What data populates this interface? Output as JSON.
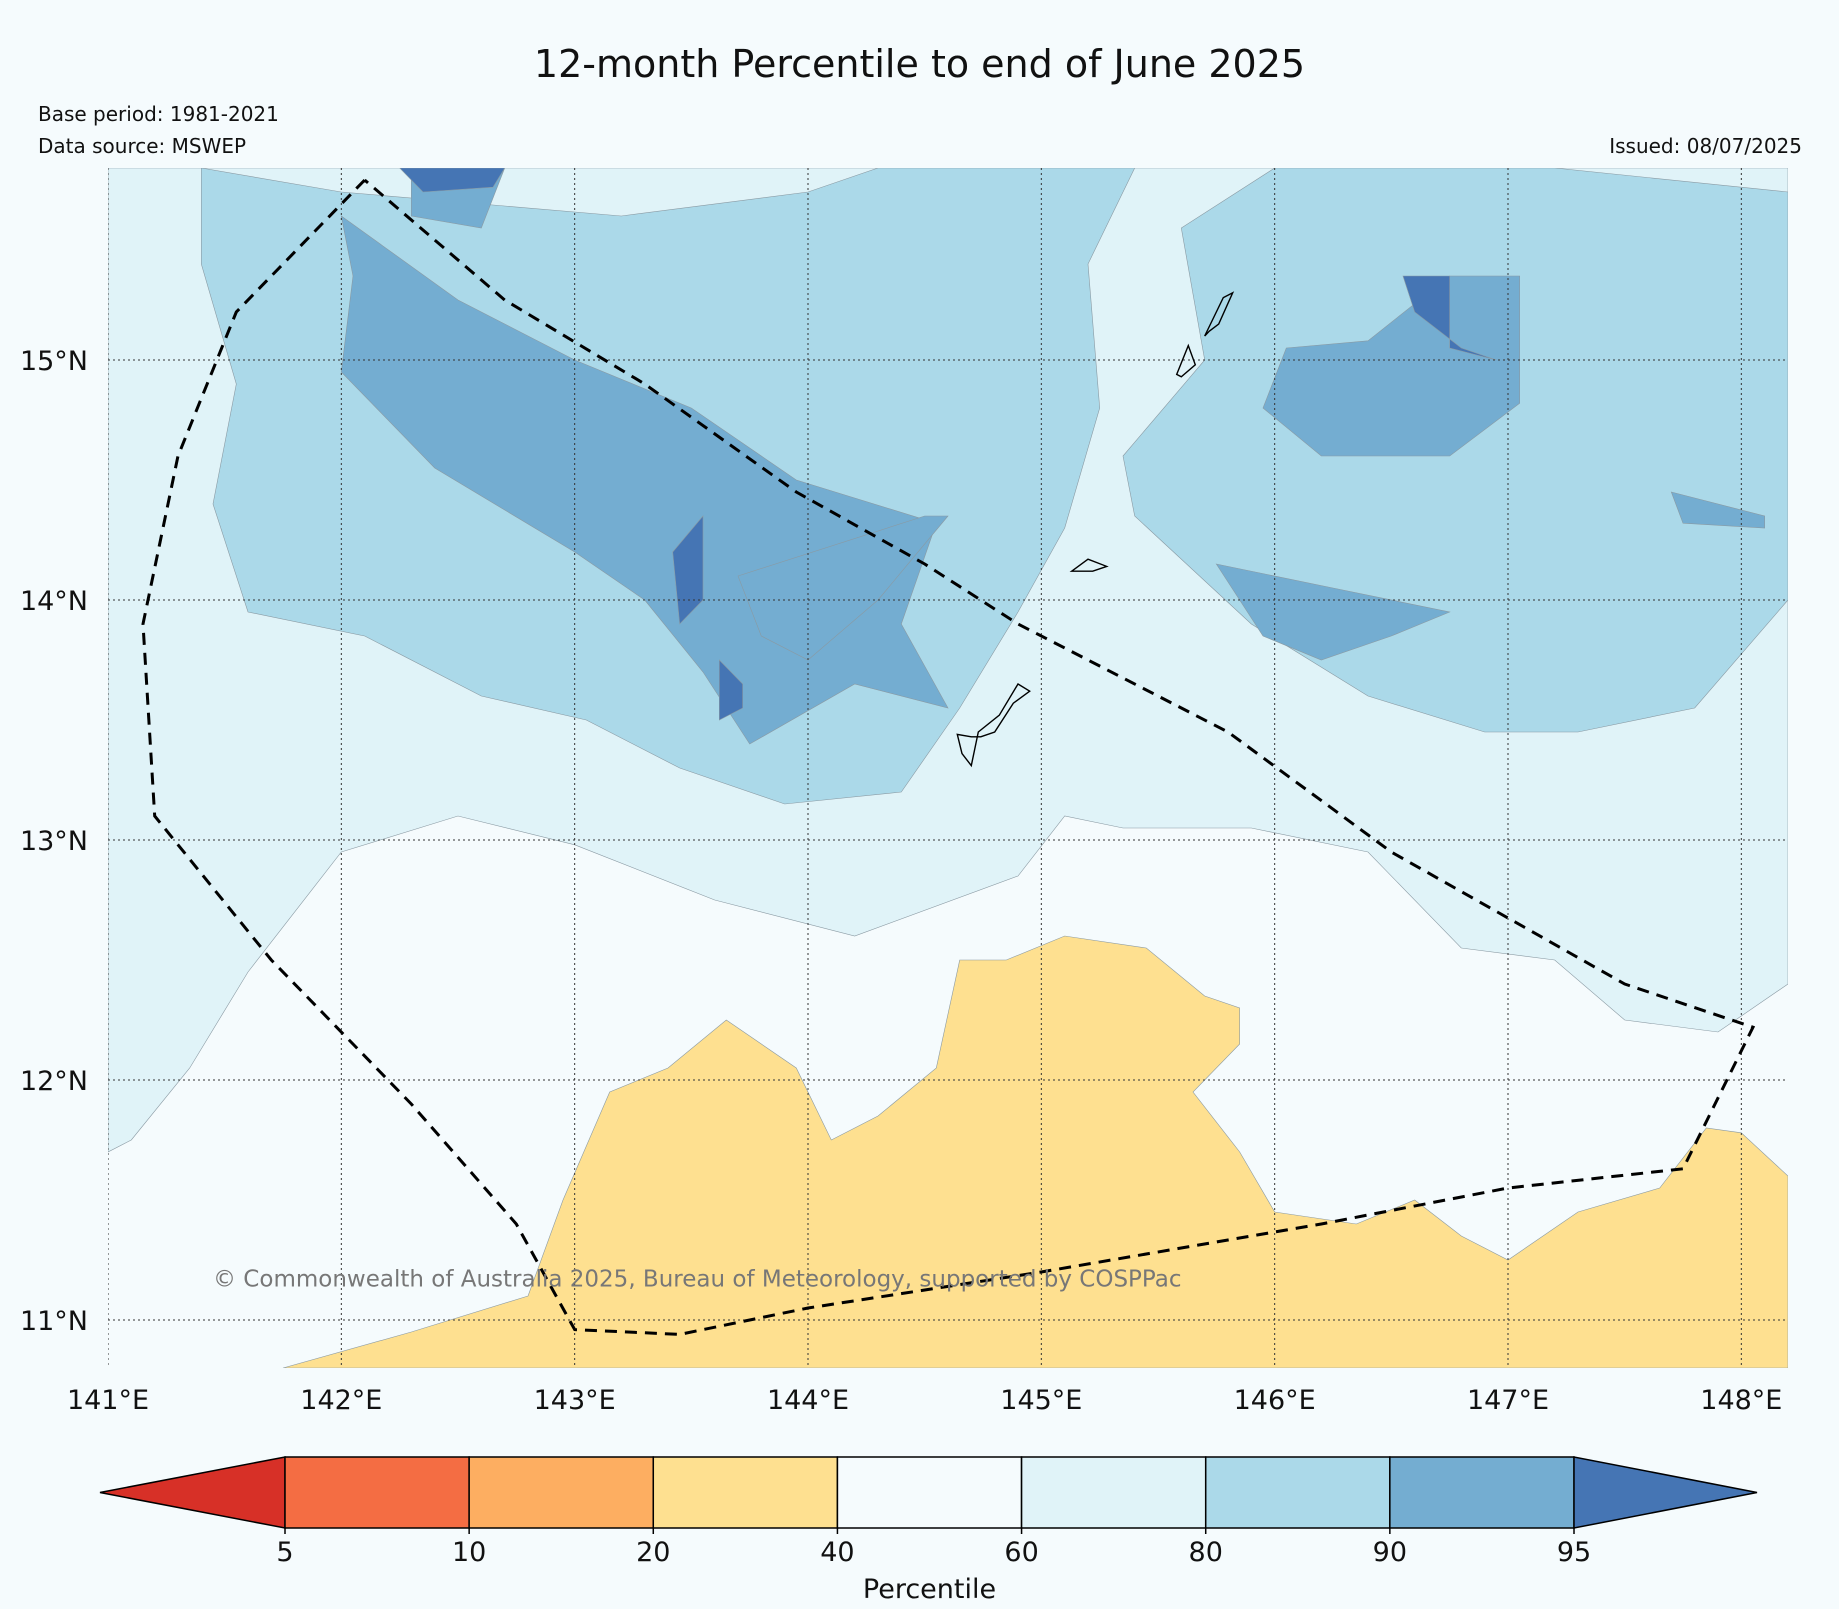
{
  "title": "12-month Percentile to end of June 2025",
  "base_period": "Base period: 1981-2021",
  "data_source": "Data source: MSWEP",
  "issued": "Issued: 08/07/2025",
  "copyright": "© Commonwealth of Australia 2025, Bureau of Meteorology, supported by COSPPac",
  "map": {
    "lon_range": [
      141.0,
      148.2
    ],
    "lat_range": [
      10.8,
      15.8
    ],
    "lon_ticks": [
      {
        "value": 141,
        "label": "141°E"
      },
      {
        "value": 142,
        "label": "142°E"
      },
      {
        "value": 143,
        "label": "143°E"
      },
      {
        "value": 144,
        "label": "144°E"
      },
      {
        "value": 145,
        "label": "145°E"
      },
      {
        "value": 146,
        "label": "146°E"
      },
      {
        "value": 147,
        "label": "147°E"
      },
      {
        "value": 148,
        "label": "148°E"
      }
    ],
    "lat_ticks": [
      {
        "value": 15,
        "label": "15°N"
      },
      {
        "value": 14,
        "label": "14°N"
      },
      {
        "value": 13,
        "label": "13°N"
      },
      {
        "value": 12,
        "label": "12°N"
      },
      {
        "value": 11,
        "label": "11°N"
      }
    ],
    "gridlines": "dotted",
    "eez_boundary": [
      [
        142.1,
        15.75
      ],
      [
        141.55,
        15.2
      ],
      [
        141.3,
        14.6
      ],
      [
        141.15,
        13.9
      ],
      [
        141.2,
        13.1
      ],
      [
        141.7,
        12.5
      ],
      [
        142.3,
        11.9
      ],
      [
        142.75,
        11.4
      ],
      [
        143.0,
        10.96
      ],
      [
        143.45,
        10.94
      ],
      [
        144.0,
        11.05
      ],
      [
        145.0,
        11.2
      ],
      [
        146.2,
        11.4
      ],
      [
        147.0,
        11.55
      ],
      [
        147.75,
        11.63
      ],
      [
        148.05,
        12.22
      ],
      [
        147.5,
        12.4
      ],
      [
        146.5,
        12.95
      ],
      [
        145.8,
        13.45
      ],
      [
        145.2,
        13.75
      ],
      [
        144.9,
        13.9
      ],
      [
        144.5,
        14.15
      ],
      [
        143.95,
        14.45
      ],
      [
        143.3,
        14.9
      ],
      [
        142.7,
        15.25
      ],
      [
        142.1,
        15.75
      ]
    ],
    "islands": [
      {
        "name": "Guam",
        "coords": [
          [
            144.74,
            13.43
          ],
          [
            144.8,
            13.45
          ],
          [
            144.88,
            13.57
          ],
          [
            144.95,
            13.62
          ],
          [
            144.9,
            13.65
          ],
          [
            144.82,
            13.52
          ],
          [
            144.73,
            13.45
          ],
          [
            144.7,
            13.31
          ],
          [
            144.66,
            13.36
          ],
          [
            144.64,
            13.44
          ],
          [
            144.7,
            13.43
          ]
        ]
      },
      {
        "name": "Rota",
        "coords": [
          [
            145.13,
            14.12
          ],
          [
            145.2,
            14.17
          ],
          [
            145.28,
            14.14
          ],
          [
            145.22,
            14.12
          ],
          [
            145.13,
            14.12
          ]
        ]
      },
      {
        "name": "Tinian",
        "coords": [
          [
            145.58,
            14.94
          ],
          [
            145.63,
            15.06
          ],
          [
            145.66,
            14.98
          ],
          [
            145.6,
            14.93
          ]
        ]
      },
      {
        "name": "Saipan",
        "coords": [
          [
            145.7,
            15.1
          ],
          [
            145.78,
            15.26
          ],
          [
            145.82,
            15.28
          ],
          [
            145.76,
            15.15
          ],
          [
            145.72,
            15.12
          ]
        ]
      }
    ],
    "precip_percentile_regions": [
      {
        "class": "60-80",
        "coords": [
          [
            141.0,
            15.8
          ],
          [
            148.2,
            15.8
          ],
          [
            148.2,
            12.4
          ],
          [
            147.9,
            12.2
          ],
          [
            147.5,
            12.25
          ],
          [
            147.2,
            12.5
          ],
          [
            146.8,
            12.55
          ],
          [
            146.4,
            12.95
          ],
          [
            145.9,
            13.05
          ],
          [
            145.35,
            13.05
          ],
          [
            145.1,
            13.1
          ],
          [
            144.9,
            12.85
          ],
          [
            144.2,
            12.6
          ],
          [
            143.6,
            12.75
          ],
          [
            143.0,
            12.98
          ],
          [
            142.5,
            13.1
          ],
          [
            142.0,
            12.95
          ],
          [
            141.6,
            12.45
          ],
          [
            141.35,
            12.05
          ],
          [
            141.1,
            11.75
          ],
          [
            141.0,
            11.7
          ]
        ]
      },
      {
        "class": "80-90",
        "coords": [
          [
            141.4,
            15.8
          ],
          [
            142.0,
            15.7
          ],
          [
            143.2,
            15.6
          ],
          [
            144.0,
            15.7
          ],
          [
            144.3,
            15.8
          ],
          [
            145.4,
            15.8
          ],
          [
            145.2,
            15.4
          ],
          [
            145.25,
            14.8
          ],
          [
            145.1,
            14.3
          ],
          [
            144.9,
            13.95
          ],
          [
            144.65,
            13.55
          ],
          [
            144.4,
            13.2
          ],
          [
            143.9,
            13.15
          ],
          [
            143.45,
            13.3
          ],
          [
            143.05,
            13.5
          ],
          [
            142.6,
            13.6
          ],
          [
            142.1,
            13.85
          ],
          [
            141.6,
            13.95
          ],
          [
            141.45,
            14.4
          ],
          [
            141.55,
            14.9
          ],
          [
            141.4,
            15.4
          ]
        ]
      },
      {
        "class": "80-90",
        "coords": [
          [
            146.0,
            15.8
          ],
          [
            147.2,
            15.8
          ],
          [
            148.2,
            15.7
          ],
          [
            148.2,
            14.0
          ],
          [
            147.8,
            13.55
          ],
          [
            147.3,
            13.45
          ],
          [
            146.9,
            13.45
          ],
          [
            146.4,
            13.6
          ],
          [
            145.9,
            13.9
          ],
          [
            145.4,
            14.35
          ],
          [
            145.35,
            14.6
          ],
          [
            145.7,
            15.0
          ],
          [
            145.6,
            15.55
          ]
        ]
      },
      {
        "class": "90-95",
        "coords": [
          [
            142.0,
            15.6
          ],
          [
            142.5,
            15.25
          ],
          [
            143.0,
            15.0
          ],
          [
            143.5,
            14.8
          ],
          [
            143.95,
            14.5
          ],
          [
            144.55,
            14.32
          ],
          [
            144.4,
            13.9
          ],
          [
            144.6,
            13.55
          ],
          [
            144.2,
            13.65
          ],
          [
            143.75,
            13.4
          ],
          [
            143.55,
            13.7
          ],
          [
            143.3,
            14.0
          ],
          [
            143.0,
            14.2
          ],
          [
            142.4,
            14.55
          ],
          [
            142.0,
            14.95
          ],
          [
            142.05,
            15.35
          ]
        ]
      },
      {
        "class": "90-95",
        "coords": [
          [
            142.3,
            15.8
          ],
          [
            142.7,
            15.8
          ],
          [
            142.6,
            15.55
          ],
          [
            142.3,
            15.6
          ]
        ]
      },
      {
        "class": "90-95",
        "coords": [
          [
            146.05,
            15.05
          ],
          [
            146.4,
            15.08
          ],
          [
            146.75,
            15.35
          ],
          [
            147.05,
            15.35
          ],
          [
            147.05,
            14.82
          ],
          [
            146.75,
            14.6
          ],
          [
            146.2,
            14.6
          ],
          [
            145.95,
            14.8
          ]
        ]
      },
      {
        "class": "90-95",
        "coords": [
          [
            145.75,
            14.15
          ],
          [
            146.25,
            14.05
          ],
          [
            146.75,
            13.95
          ],
          [
            146.5,
            13.85
          ],
          [
            146.2,
            13.75
          ],
          [
            145.95,
            13.85
          ]
        ]
      },
      {
        "class": "90-95",
        "coords": [
          [
            147.7,
            14.45
          ],
          [
            148.1,
            14.35
          ],
          [
            148.1,
            14.3
          ],
          [
            147.75,
            14.32
          ]
        ]
      },
      {
        "class": "90-95",
        "coords": [
          [
            143.7,
            14.1
          ],
          [
            144.5,
            14.35
          ],
          [
            144.6,
            14.35
          ],
          [
            144.3,
            14.0
          ],
          [
            144.0,
            13.75
          ],
          [
            143.8,
            13.85
          ]
        ]
      },
      {
        "class": ">95",
        "coords": [
          [
            146.55,
            15.35
          ],
          [
            146.75,
            15.35
          ],
          [
            146.75,
            15.05
          ],
          [
            146.95,
            15.0
          ],
          [
            146.8,
            15.05
          ],
          [
            146.6,
            15.2
          ]
        ]
      },
      {
        "class": ">95",
        "coords": [
          [
            143.42,
            14.2
          ],
          [
            143.55,
            14.35
          ],
          [
            143.55,
            14.0
          ],
          [
            143.45,
            13.9
          ]
        ]
      },
      {
        "class": ">95",
        "coords": [
          [
            143.62,
            13.75
          ],
          [
            143.72,
            13.65
          ],
          [
            143.72,
            13.55
          ],
          [
            143.62,
            13.5
          ]
        ]
      },
      {
        "class": ">95",
        "coords": [
          [
            142.7,
            15.8
          ],
          [
            142.25,
            15.8
          ],
          [
            142.35,
            15.7
          ],
          [
            142.65,
            15.72
          ]
        ]
      },
      {
        "class": "20-40",
        "coords": [
          [
            141.75,
            10.8
          ],
          [
            142.3,
            10.95
          ],
          [
            142.8,
            11.1
          ],
          [
            142.95,
            11.5
          ],
          [
            143.15,
            11.95
          ],
          [
            143.4,
            12.05
          ],
          [
            143.65,
            12.25
          ],
          [
            143.95,
            12.05
          ],
          [
            144.1,
            11.75
          ],
          [
            144.3,
            11.85
          ],
          [
            144.55,
            12.05
          ],
          [
            144.65,
            12.5
          ],
          [
            144.85,
            12.5
          ],
          [
            145.1,
            12.6
          ],
          [
            145.45,
            12.55
          ],
          [
            145.7,
            12.35
          ],
          [
            145.85,
            12.3
          ],
          [
            145.85,
            12.15
          ],
          [
            145.65,
            11.95
          ],
          [
            145.85,
            11.7
          ],
          [
            146.0,
            11.45
          ],
          [
            146.35,
            11.4
          ],
          [
            146.6,
            11.5
          ],
          [
            146.8,
            11.35
          ],
          [
            147.0,
            11.25
          ],
          [
            147.3,
            11.45
          ],
          [
            147.65,
            11.55
          ],
          [
            147.85,
            11.8
          ],
          [
            148.0,
            11.78
          ],
          [
            148.2,
            11.6
          ],
          [
            148.2,
            10.8
          ]
        ]
      }
    ]
  },
  "colorbar": {
    "title": "Percentile",
    "ticks": [
      "5",
      "10",
      "20",
      "40",
      "60",
      "80",
      "90",
      "95"
    ],
    "classes": [
      {
        "range": "<5",
        "color": "#d73027"
      },
      {
        "range": "5-10",
        "color": "#f46d43"
      },
      {
        "range": "10-20",
        "color": "#fdae61"
      },
      {
        "range": "20-40",
        "color": "#fee090"
      },
      {
        "range": "40-60",
        "color": "#f5fbfd"
      },
      {
        "range": "60-80",
        "color": "#e0f3f8"
      },
      {
        "range": "80-90",
        "color": "#abd9e9"
      },
      {
        "range": "90-95",
        "color": "#74add1"
      },
      {
        "range": ">95",
        "color": "#4575b4"
      }
    ]
  }
}
